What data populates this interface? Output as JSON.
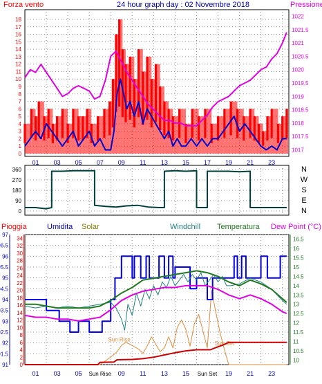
{
  "colors": {
    "wind": "#ff0000",
    "gust": "#ff0000",
    "avg_wind": "#0000cc",
    "pressure": "#e000e0",
    "direction": "#004040",
    "rain": "#cc0000",
    "rain_axis": "#dd0000",
    "humidity": "#0000ee",
    "solar": "#e08a3a",
    "windchill": "#208080",
    "temperature": "#207820",
    "dewpoint": "#e000e0",
    "grid": "#8a8a8a",
    "title": "#0000aa"
  },
  "chart_data": [
    {
      "type": "line",
      "title": "24 hour graph day : 02 Novembre 2018",
      "left_label": "Forza vento",
      "right_label": "Pressione",
      "x_ticks": [
        "01",
        "03",
        "05",
        "07",
        "09",
        "11",
        "13",
        "15",
        "17",
        "19",
        "21",
        "23"
      ],
      "y_left_ticks": [
        0,
        1,
        2,
        3,
        4,
        5,
        6,
        7,
        8,
        9,
        10,
        11,
        12,
        13,
        14,
        15,
        16,
        17,
        18
      ],
      "y_left_range": [
        0,
        18
      ],
      "y_right_ticks": [
        "1017",
        "1017.5",
        "1018",
        "1018.5",
        "1019",
        "1019.5",
        "1020",
        "1020.5",
        "1021",
        "1021.5",
        "1022"
      ],
      "y_right_range": [
        1016.75,
        1022.25
      ],
      "x_range": [
        0,
        24.6
      ],
      "grid": true,
      "series": [
        {
          "key": "gust",
          "x": [
            0,
            0.6,
            1.0,
            1.3,
            1.8,
            2.2,
            2.6,
            3.0,
            3.5,
            4.0,
            4.5,
            5.0,
            5.4,
            5.8,
            6.2,
            6.8,
            7.4,
            7.9,
            8.2,
            8.5,
            8.8,
            9.1,
            9.4,
            9.8,
            10.2,
            10.6,
            11.0,
            11.4,
            11.8,
            12.2,
            12.6,
            13.0,
            13.4,
            13.8,
            14.4,
            15.0,
            15.6,
            16.2,
            16.8,
            17.4,
            18.0,
            18.6,
            19.2,
            19.8,
            20.4,
            21.0,
            21.4,
            21.8,
            22.2,
            22.6,
            23.0,
            23.6,
            24.0,
            24.4
          ],
          "values": [
            4,
            6,
            5,
            7,
            5,
            6,
            4,
            5,
            6,
            4,
            6,
            5,
            5,
            6,
            4,
            5,
            6,
            7,
            10,
            16,
            18,
            14,
            12,
            13,
            10,
            14,
            11,
            13,
            10,
            12,
            9,
            7,
            6,
            5,
            6,
            4,
            6,
            5,
            6,
            4,
            5,
            6,
            7,
            6,
            5,
            6,
            5,
            4,
            3,
            5,
            6,
            4,
            5,
            6
          ]
        },
        {
          "key": "avg_wind",
          "x": [
            0,
            0.5,
            1.0,
            1.5,
            2.0,
            2.5,
            3.0,
            3.5,
            4.0,
            4.5,
            5.0,
            5.5,
            6.0,
            6.5,
            7.0,
            7.5,
            8.0,
            8.3,
            8.6,
            8.9,
            9.2,
            9.5,
            9.8,
            10.2,
            10.6,
            11.0,
            11.4,
            11.8,
            12.2,
            12.6,
            13.0,
            13.4,
            13.8,
            14.2,
            14.6,
            15.0,
            15.5,
            16.0,
            16.5,
            17.0,
            17.5,
            18.0,
            18.5,
            19.0,
            19.5,
            20.0,
            20.5,
            21.0,
            21.5,
            22.0,
            22.5,
            23.0,
            23.5,
            24.0,
            24.4
          ],
          "values": [
            1,
            2,
            3,
            2,
            4,
            3,
            2,
            1,
            2,
            3,
            1,
            2,
            3,
            1,
            2,
            0.5,
            0.5,
            3,
            8,
            10,
            8,
            6,
            7,
            5,
            7,
            4,
            6,
            5,
            4,
            3,
            2,
            3,
            1,
            2,
            1,
            1,
            2,
            1,
            2,
            1,
            2,
            2,
            3,
            4,
            5,
            3,
            4,
            3,
            2,
            1,
            0.5,
            1,
            0.5,
            2,
            2
          ]
        },
        {
          "key": "pressure",
          "x": [
            0,
            0.5,
            1,
            1.5,
            2,
            2.5,
            3,
            3.5,
            4,
            4.5,
            5,
            5.5,
            6,
            6.5,
            7,
            7.5,
            8,
            8.5,
            9,
            9.5,
            10,
            10.5,
            11,
            11.5,
            12,
            12.5,
            13,
            13.5,
            14,
            14.5,
            15,
            15.5,
            16,
            16.5,
            17,
            17.5,
            18,
            18.5,
            19,
            19.5,
            20,
            20.5,
            21,
            21.5,
            22,
            22.5,
            23,
            23.5,
            24,
            24.4
          ],
          "values": [
            1019.7,
            1020,
            1019.9,
            1020.2,
            1019.9,
            1019.6,
            1019.3,
            1019.0,
            1019.1,
            1019.3,
            1019.4,
            1019.3,
            1019.2,
            1018.9,
            1019.0,
            1019.6,
            1020.5,
            1020.7,
            1020.3,
            1019.9,
            1019.6,
            1019.3,
            1019.0,
            1018.7,
            1018.5,
            1018.3,
            1018.1,
            1018.1,
            1018.0,
            1018.0,
            1017.9,
            1017.9,
            1017.9,
            1018.1,
            1018.3,
            1018.6,
            1018.8,
            1018.9,
            1019.0,
            1019.2,
            1019.4,
            1019.5,
            1019.6,
            1019.8,
            1020.0,
            1020.1,
            1020.4,
            1020.6,
            1021.0,
            1021.4
          ]
        }
      ]
    },
    {
      "type": "line",
      "y_ticks": [
        "360",
        "270",
        "180",
        "90",
        "0"
      ],
      "y_range": [
        0,
        360
      ],
      "x_range": [
        0,
        24.6
      ],
      "direction_labels": [
        "N",
        "W",
        "S",
        "E",
        "N"
      ],
      "grid": true,
      "series": [
        {
          "key": "direction",
          "x": [
            0,
            1,
            2,
            2.5,
            2.5,
            3.5,
            4.5,
            5.5,
            6.5,
            6.5,
            7.5,
            8.5,
            9.5,
            10.5,
            11.5,
            12.5,
            13,
            13,
            14,
            15,
            16,
            16,
            17,
            17,
            18,
            19,
            20,
            21,
            21,
            22,
            23,
            24,
            24.4
          ],
          "values": [
            30,
            30,
            20,
            30,
            345,
            345,
            350,
            350,
            350,
            50,
            40,
            35,
            45,
            50,
            35,
            30,
            30,
            345,
            350,
            345,
            350,
            30,
            30,
            345,
            345,
            345,
            340,
            345,
            30,
            30,
            30,
            30,
            30
          ]
        }
      ]
    },
    {
      "type": "line",
      "left_labels": [
        "Pioggia",
        "Umidita",
        "Solar"
      ],
      "right_labels": [
        "Windchill",
        "Temperatura",
        "Dew Point (°C)"
      ],
      "x_ticks": [
        "01",
        "03",
        "05",
        "Sun Rise",
        "09",
        "11",
        "13",
        "15",
        "Sun Set",
        "19",
        "21",
        "23"
      ],
      "rain_ticks": [
        "0",
        "2",
        "4",
        "6",
        "8",
        "10",
        "12",
        "14",
        "16",
        "18",
        "20",
        "22",
        "24",
        "26",
        "28",
        "30",
        "32",
        "34"
      ],
      "humidity_ticks": [
        "91",
        "91.5",
        "92",
        "92.5",
        "93",
        "93.5",
        "94",
        "94.5",
        "95",
        "95.5",
        "96",
        "96.5",
        "97"
      ],
      "temp_ticks": [
        "10",
        "10.5",
        "11",
        "11.5",
        "12",
        "12.5",
        "13",
        "13.5",
        "14",
        "14.5",
        "15",
        "15.5",
        "16",
        "16.5"
      ],
      "annotations": [
        "Sun Rise",
        "Sun Set"
      ],
      "rain_range": [
        0,
        35
      ],
      "humidity_range": [
        91,
        97
      ],
      "temp_range": [
        9.75,
        16.75
      ],
      "x_range": [
        0,
        24.6
      ],
      "grid": true,
      "series": [
        {
          "key": "rain",
          "x": [
            0,
            6.8,
            7,
            8.3,
            8.6,
            10,
            11,
            12,
            13,
            14,
            15,
            16,
            17.3,
            17.8,
            18.4,
            19,
            20,
            21,
            22,
            23,
            24,
            24.4
          ],
          "values": [
            0,
            0,
            0.6,
            0.7,
            1.3,
            1.4,
            1.6,
            2,
            2.6,
            3.2,
            3.7,
            4,
            4,
            4.6,
            5.2,
            6,
            6,
            6,
            6,
            6,
            6,
            6
          ]
        },
        {
          "key": "humidity",
          "x": [
            0,
            2.0,
            2.0,
            3.2,
            3.2,
            4.2,
            4.2,
            5.0,
            5.0,
            6.0,
            6.0,
            7.2,
            7.2,
            8.0,
            8.0,
            8.4,
            8.4,
            9.0,
            9.0,
            10.0,
            10.0,
            10.2,
            10.2,
            10.8,
            10.8,
            11.3,
            11.3,
            11.6,
            11.6,
            12.5,
            12.5,
            13.0,
            13.0,
            13.4,
            13.4,
            13.8,
            13.8,
            14.0,
            14.0,
            15.4,
            15.4,
            16.0,
            16.0,
            17.0,
            17.0,
            17.5,
            17.5,
            19.5,
            19.5,
            19.8,
            19.8,
            20.2,
            20.2,
            20.6,
            20.6,
            22.0,
            22.0,
            22.6,
            22.6,
            23.8,
            23.8,
            24.4
          ],
          "values": [
            94,
            94,
            93.5,
            93.5,
            93,
            93,
            92.5,
            92.5,
            93,
            93,
            92.5,
            92.5,
            93,
            93,
            94,
            94,
            95,
            95,
            96,
            96,
            95,
            95,
            96,
            96,
            95,
            95,
            96,
            96,
            95,
            95,
            96,
            96,
            95,
            95,
            96,
            96,
            95,
            95,
            95.5,
            95.5,
            94.5,
            94.5,
            95,
            95,
            94,
            94,
            95,
            95,
            96,
            96,
            95,
            95,
            96,
            96,
            95,
            95,
            96,
            96,
            95,
            95,
            96,
            96
          ]
        },
        {
          "key": "solar",
          "x": [
            0,
            7.0,
            7.4,
            7.8,
            8.2,
            8.6,
            9.0,
            9.4,
            9.8,
            10.2,
            10.6,
            11.0,
            11.4,
            11.8,
            12.2,
            12.6,
            13.0,
            13.4,
            13.8,
            14.2,
            14.6,
            15.0,
            15.4,
            15.8,
            16.2,
            16.6,
            17.0,
            17.4,
            17.8,
            18.2,
            18.6,
            19.0,
            24.4
          ],
          "values": [
            0,
            0,
            0.8,
            1.6,
            2.5,
            3.5,
            5.2,
            6.0,
            5.5,
            4.8,
            4.2,
            3.0,
            5.0,
            7.5,
            5.5,
            3.5,
            4.5,
            7.5,
            4.5,
            10.0,
            12.0,
            9.5,
            5.0,
            11.0,
            13.5,
            9.0,
            4.5,
            20.0,
            14.0,
            8.5,
            4.0,
            0,
            0
          ]
        },
        {
          "key": "windchill",
          "x": [
            0,
            1,
            2,
            3,
            4,
            5,
            6,
            7,
            8,
            8.5,
            9,
            9.3,
            9.6,
            10,
            10.4,
            10.8,
            11.2,
            11.6,
            12,
            12.4,
            12.8,
            13.2,
            13.6,
            14,
            14.4,
            14.8,
            15.2,
            15.6,
            16,
            16.4,
            16.8,
            17.2,
            17.6,
            18,
            18.4,
            18.8,
            19.2,
            20,
            21,
            22,
            23,
            24,
            24.4
          ],
          "values": [
            12.9,
            12.8,
            12.9,
            12.8,
            12.9,
            12.8,
            12.9,
            13.0,
            13.1,
            12.8,
            12.2,
            11.6,
            13.0,
            12.4,
            13.6,
            12.9,
            13.8,
            13.3,
            14.0,
            13.5,
            14.2,
            13.9,
            14.5,
            14.0,
            14.3,
            14.6,
            14.2,
            14.6,
            14.3,
            14.7,
            14.0,
            14.3,
            14.6,
            14.2,
            14.5,
            14.0,
            14.0,
            14.1,
            14.4,
            14.2,
            13.8,
            13.2,
            13.0
          ]
        },
        {
          "key": "temperature",
          "x": [
            0,
            1,
            2,
            3,
            4,
            5,
            6,
            7,
            8,
            9,
            10,
            11,
            12,
            13,
            14,
            15,
            16,
            17,
            18,
            19,
            20,
            21,
            22,
            23,
            24,
            24.4
          ],
          "values": [
            13.0,
            13.0,
            12.9,
            12.8,
            12.8,
            12.8,
            12.8,
            12.9,
            13.2,
            13.6,
            13.9,
            14.3,
            14.4,
            14.5,
            14.6,
            14.7,
            14.8,
            14.7,
            14.5,
            14.2,
            14.0,
            14.3,
            14.1,
            13.8,
            13.3,
            13.1
          ]
        },
        {
          "key": "dewpoint",
          "x": [
            0,
            1,
            2,
            3,
            4,
            5,
            6,
            7,
            8,
            9,
            10,
            11,
            12,
            13,
            14,
            15,
            16,
            17,
            18,
            19,
            20,
            21,
            22,
            23,
            24,
            24.4
          ],
          "values": [
            12.4,
            12.3,
            12.3,
            12.2,
            12.2,
            12.1,
            12.2,
            12.3,
            12.7,
            13.2,
            13.5,
            13.7,
            13.8,
            13.9,
            13.9,
            14.0,
            14.0,
            14.0,
            13.8,
            13.5,
            13.3,
            13.5,
            13.3,
            13.0,
            12.6,
            12.5
          ]
        }
      ]
    }
  ]
}
